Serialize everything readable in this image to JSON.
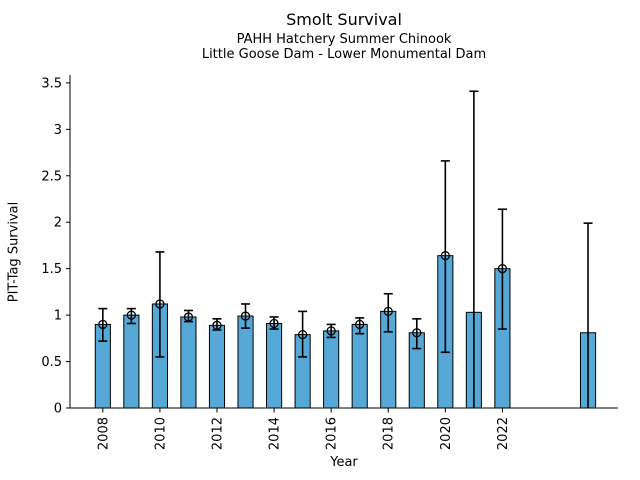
{
  "chart_data": {
    "type": "bar",
    "title": "Smolt Survival",
    "subtitle1": "PAHH Hatchery Summer Chinook",
    "subtitle2": "Little Goose Dam - Lower Monumental Dam",
    "xlabel": "Year",
    "ylabel": "PIT-Tag Survival",
    "xlim": [
      2006.85,
      2026.05
    ],
    "ylim": [
      0,
      3.585
    ],
    "x_ticks": [
      2008,
      2010,
      2012,
      2014,
      2016,
      2018,
      2020,
      2022
    ],
    "y_ticks": [
      0,
      0.5,
      1,
      1.5,
      2,
      2.5,
      3,
      3.5
    ],
    "y_tick_labels": [
      "0",
      "0.5",
      "1",
      "1.5",
      "2",
      "2.5",
      "3",
      "3.5"
    ],
    "grid": false,
    "legend": null,
    "bar_width_years": 0.53,
    "colors": {
      "bar_fill": "#56a8d6",
      "bar_edge": "#000000",
      "error_bar": "#000000",
      "marker_edge": "#000000",
      "axis": "#000000",
      "background": "#ffffff"
    },
    "series": [
      {
        "year": 2008,
        "value": 0.9,
        "err_low": 0.72,
        "err_high": 1.07,
        "marker": true
      },
      {
        "year": 2009,
        "value": 1.0,
        "err_low": 0.91,
        "err_high": 1.07,
        "marker": true
      },
      {
        "year": 2010,
        "value": 1.12,
        "err_low": 0.55,
        "err_high": 1.68,
        "marker": true
      },
      {
        "year": 2011,
        "value": 0.98,
        "err_low": 0.93,
        "err_high": 1.05,
        "marker": true
      },
      {
        "year": 2012,
        "value": 0.89,
        "err_low": 0.84,
        "err_high": 0.96,
        "marker": true
      },
      {
        "year": 2013,
        "value": 0.99,
        "err_low": 0.86,
        "err_high": 1.12,
        "marker": true
      },
      {
        "year": 2014,
        "value": 0.91,
        "err_low": 0.85,
        "err_high": 0.98,
        "marker": true
      },
      {
        "year": 2015,
        "value": 0.79,
        "err_low": 0.55,
        "err_high": 1.04,
        "marker": true
      },
      {
        "year": 2016,
        "value": 0.83,
        "err_low": 0.76,
        "err_high": 0.9,
        "marker": true
      },
      {
        "year": 2017,
        "value": 0.9,
        "err_low": 0.8,
        "err_high": 0.97,
        "marker": true
      },
      {
        "year": 2018,
        "value": 1.04,
        "err_low": 0.82,
        "err_high": 1.23,
        "marker": true
      },
      {
        "year": 2019,
        "value": 0.81,
        "err_low": 0.64,
        "err_high": 0.96,
        "marker": true
      },
      {
        "year": 2020,
        "value": 1.64,
        "err_low": 0.6,
        "err_high": 2.66,
        "marker": true
      },
      {
        "year": 2021,
        "value": 1.03,
        "err_low": 0.0,
        "err_high": 3.41,
        "marker": false
      },
      {
        "year": 2022,
        "value": 1.5,
        "err_low": 0.85,
        "err_high": 2.14,
        "marker": true
      },
      {
        "year": 2025,
        "value": 0.81,
        "err_low": 0.0,
        "err_high": 1.99,
        "marker": false
      }
    ]
  }
}
